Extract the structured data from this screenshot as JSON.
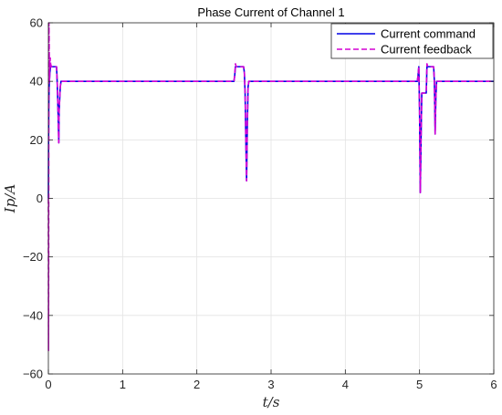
{
  "chart_data": {
    "type": "line",
    "title": "Phase Current of Channel 1",
    "xlabel": "t/s",
    "ylabel": "Ip/A",
    "xlim": [
      0,
      6
    ],
    "ylim": [
      -60,
      60
    ],
    "xticks": [
      0,
      1,
      2,
      3,
      4,
      5,
      6
    ],
    "yticks": [
      -60,
      -40,
      -20,
      0,
      20,
      40,
      60
    ],
    "grid": true,
    "legend_position": "top-right",
    "series": [
      {
        "name": "Current command",
        "color": "#0000e6",
        "style": "solid",
        "x": [
          0,
          0.002,
          0.005,
          0.01,
          0.02,
          0.03,
          0.04,
          0.05,
          0.07,
          0.1,
          0.11,
          0.12,
          0.13,
          0.14,
          0.145,
          0.16,
          0.17,
          0.18,
          0.25,
          2.5,
          2.51,
          2.52,
          2.53,
          2.55,
          2.63,
          2.64,
          2.65,
          2.66,
          2.67,
          2.68,
          2.69,
          2.7,
          3.0,
          4.97,
          4.98,
          4.99,
          5.0,
          5.01,
          5.02,
          5.03,
          5.04,
          5.09,
          5.1,
          5.11,
          5.12,
          5.19,
          5.2,
          5.21,
          5.22,
          5.23,
          5.24,
          5.25,
          5.5,
          6.0
        ],
        "y": [
          0,
          15,
          30,
          38,
          43,
          45,
          45,
          45,
          45,
          45,
          45,
          39,
          30,
          19,
          30,
          38,
          40,
          40,
          40,
          40,
          42,
          45,
          45,
          45,
          45,
          43,
          36,
          20,
          6,
          25,
          38,
          40,
          40,
          40,
          42,
          45,
          30,
          2,
          20,
          36,
          36,
          36,
          45,
          45,
          45,
          45,
          40,
          22,
          35,
          40,
          40,
          40,
          40,
          40
        ]
      },
      {
        "name": "Current feedback",
        "color": "#d400d4",
        "style": "dashed",
        "x": [
          0,
          0.002,
          0.004,
          0.007,
          0.01,
          0.015,
          0.02,
          0.025,
          0.03,
          0.04,
          0.05,
          0.07,
          0.1,
          0.11,
          0.12,
          0.13,
          0.14,
          0.145,
          0.16,
          0.17,
          0.18,
          0.25,
          2.5,
          2.51,
          2.52,
          2.53,
          2.55,
          2.63,
          2.64,
          2.65,
          2.66,
          2.67,
          2.68,
          2.69,
          2.7,
          3.0,
          4.97,
          4.98,
          4.99,
          5.0,
          5.01,
          5.02,
          5.03,
          5.04,
          5.09,
          5.1,
          5.11,
          5.12,
          5.19,
          5.2,
          5.21,
          5.22,
          5.23,
          5.24,
          5.25,
          5.5,
          6.0
        ],
        "y": [
          0,
          -52,
          -20,
          60,
          55,
          40,
          44,
          48,
          46,
          45,
          45,
          45,
          45,
          45,
          39,
          30,
          19,
          30,
          38,
          40,
          40,
          40,
          40,
          42,
          46,
          45,
          45,
          45,
          43,
          36,
          20,
          6,
          25,
          38,
          40,
          40,
          40,
          42,
          45,
          30,
          2,
          20,
          36,
          36,
          36,
          46,
          45,
          45,
          45,
          40,
          22,
          35,
          40,
          40,
          40,
          40,
          40
        ]
      }
    ]
  }
}
